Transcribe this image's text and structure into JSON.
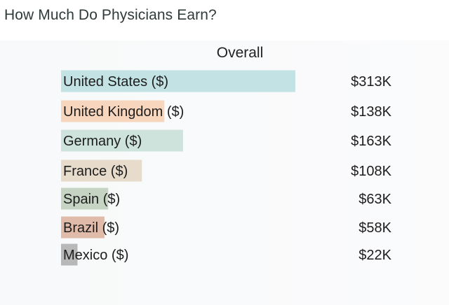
{
  "page": {
    "title": "How Much Do Physicians Earn?"
  },
  "chart_data": {
    "type": "bar",
    "orientation": "horizontal",
    "title": "Overall",
    "categories": [
      "United States ($)",
      "United Kingdom ($)",
      "Germany ($)",
      "France ($)",
      "Spain ($)",
      "Brazil ($)",
      "Mexico ($)"
    ],
    "values": [
      313,
      138,
      163,
      108,
      63,
      58,
      22
    ],
    "value_labels": [
      "$313K",
      "$138K",
      "$163K",
      "$108K",
      "$63K",
      "$58K",
      "$22K"
    ],
    "unit": "$K",
    "bar_colors": [
      "#c3e2e3",
      "#f7d6bd",
      "#cfe3dd",
      "#e7dccb",
      "#c6d4c3",
      "#e0bba9",
      "#b8b8b8"
    ],
    "grid": false,
    "legend": "none"
  }
}
